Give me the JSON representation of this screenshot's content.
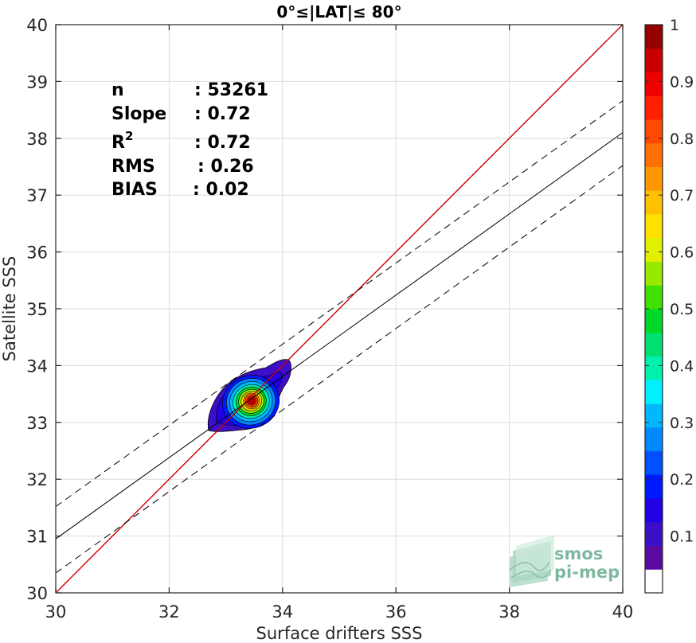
{
  "chart_data": {
    "type": "scatter",
    "title": "0°≤|LAT|≤ 80°",
    "xlabel": "Surface drifters SSS",
    "ylabel": "Satellite SSS",
    "xlim": [
      30,
      40
    ],
    "ylim": [
      30,
      40
    ],
    "xticks": [
      "30",
      "32",
      "34",
      "36",
      "38",
      "40"
    ],
    "yticks": [
      "30",
      "31",
      "32",
      "33",
      "34",
      "35",
      "36",
      "37",
      "38",
      "39",
      "40"
    ],
    "grid": true,
    "stats": [
      {
        "label": "n",
        "sep": ":",
        "value": "53261"
      },
      {
        "label": "Slope",
        "sep": ":",
        "value": "0.72"
      },
      {
        "label": "R",
        "sup": "2",
        "sep": ":",
        "value": "0.72"
      },
      {
        "label": "RMS",
        "sep": ":",
        "value": "0.26"
      },
      {
        "label": "BIAS",
        "sep": ":",
        "value": "0.02"
      }
    ],
    "identity_line": {
      "x": [
        30,
        40
      ],
      "y": [
        30,
        40
      ],
      "color": "#cc0000"
    },
    "regression_line": {
      "x": [
        30,
        40
      ],
      "y": [
        30.95,
        38.1
      ],
      "color": "#000000"
    },
    "confidence_lines": [
      {
        "x": [
          30,
          40
        ],
        "y": [
          31.52,
          38.66
        ]
      },
      {
        "x": [
          30,
          40
        ],
        "y": [
          30.35,
          37.52
        ]
      }
    ],
    "density_center": {
      "x": 33.45,
      "y": 33.38
    },
    "colorbar": {
      "ticks": [
        "0.1",
        "0.2",
        "0.3",
        "0.4",
        "0.5",
        "0.6",
        "0.7",
        "0.8",
        "0.9",
        "1"
      ],
      "range": [
        0,
        1
      ],
      "colors": [
        "#ffffff",
        "#5a0aa0",
        "#3c0ec8",
        "#2200e6",
        "#0018ff",
        "#0050ff",
        "#0088ff",
        "#00b8ff",
        "#00f0ff",
        "#00f0b0",
        "#00e070",
        "#00d828",
        "#40e000",
        "#98e800",
        "#e0f000",
        "#ffe000",
        "#ffc000",
        "#ff9800",
        "#ff7000",
        "#ff4800",
        "#ff2000",
        "#f00000",
        "#c80000",
        "#960000"
      ]
    }
  },
  "logo": {
    "line1": "smos",
    "line2": "pi-mep"
  }
}
